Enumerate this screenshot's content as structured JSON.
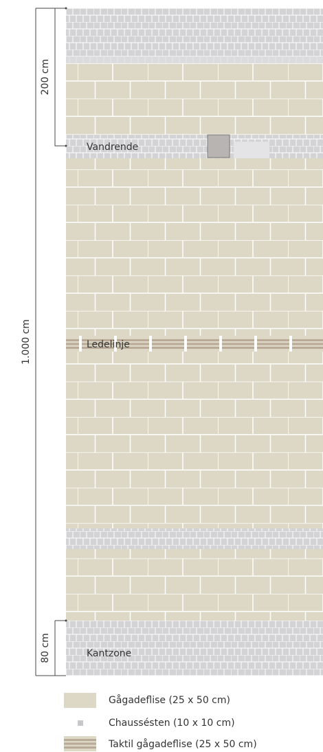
{
  "dimensions": [
    "200 cm",
    "1.000 cm",
    "80 cm"
  ],
  "zones": [
    "Vandrende",
    "Ledelinje",
    "Kantzone"
  ],
  "legend": [
    "Gågadeflise (25 x 50 cm)",
    "Chaussésten (10 x 10 cm)",
    "Taktil gågadeflise (25 x 50 cm)"
  ]
}
